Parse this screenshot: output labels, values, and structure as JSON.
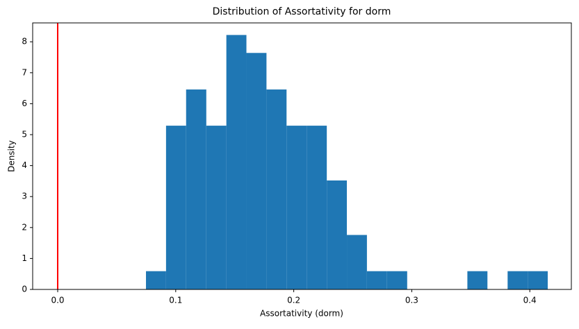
{
  "chart_data": {
    "type": "histogram",
    "title": "Distribution of Assortativity for dorm",
    "xlabel": "Assortativity (dorm)",
    "ylabel": "Density",
    "bins": [
      0.0748,
      0.0918,
      0.1088,
      0.1259,
      0.1429,
      0.1599,
      0.1769,
      0.1939,
      0.211,
      0.228,
      0.245,
      0.262,
      0.279,
      0.2961,
      0.3131,
      0.3301,
      0.3471,
      0.3641,
      0.3812,
      0.3982,
      0.4152
    ],
    "values": [
      0.59,
      5.29,
      6.46,
      5.29,
      8.22,
      7.64,
      6.46,
      5.29,
      5.29,
      3.52,
      1.76,
      0.59,
      0.59,
      0,
      0,
      0,
      0.59,
      0,
      0.59,
      0.59
    ],
    "color": "#1f77b4",
    "vline": 0,
    "vline_color": "#ff0000",
    "xlim": [
      -0.0212,
      0.4352
    ],
    "xticks": [
      {
        "value": 0,
        "label": "0.0"
      },
      0.1,
      0.2,
      0.3,
      0.4
    ],
    "ylim": [
      0,
      8.61
    ],
    "yticks": [
      0,
      1,
      2,
      3,
      4,
      5,
      6,
      7,
      8
    ]
  }
}
